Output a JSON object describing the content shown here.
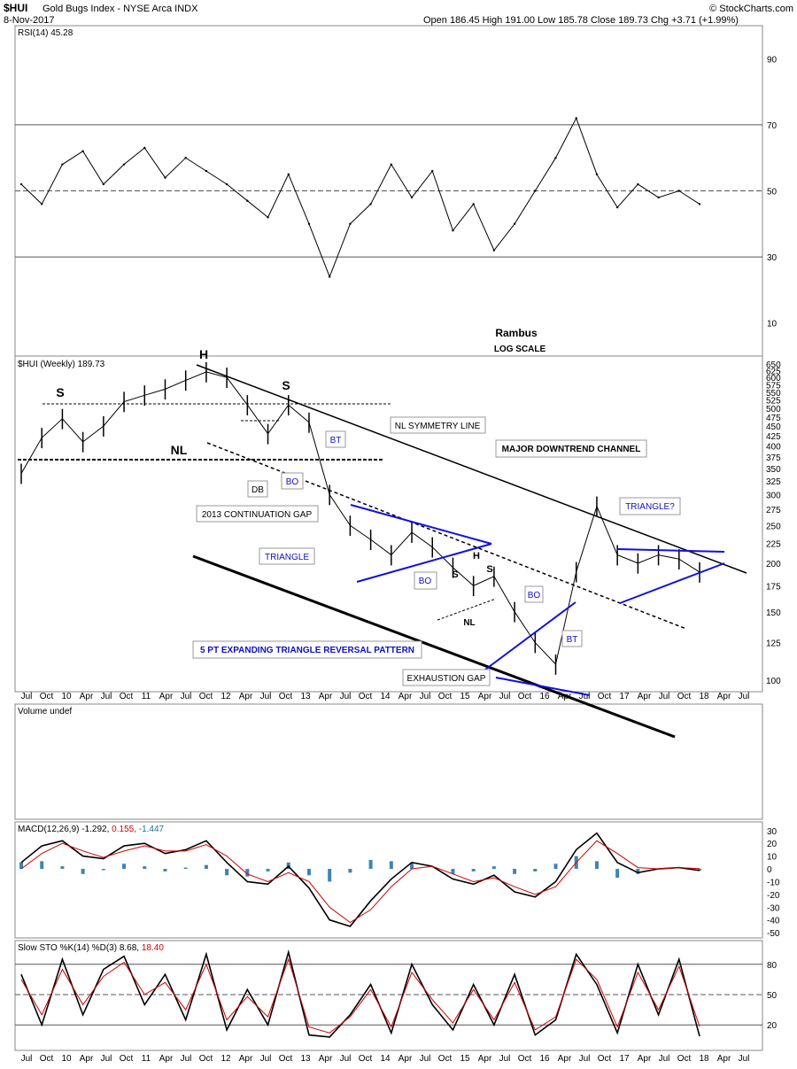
{
  "header": {
    "symbol": "$HUI",
    "name": "Gold Bugs Index - NYSE Arca INDX",
    "date": "8-Nov-2017",
    "ohlc": "Open 186.45  High 191.00  Low 185.78  Close 189.73  Chg +3.71 (+1.99%)",
    "watermark": "© StockCharts.com"
  },
  "panels": {
    "rsi_label": "RSI(14) 45.28",
    "price_label": "$HUI (Weekly) 189.73",
    "volume_label": "Volume undef",
    "macd_label_main": "MACD(12,26,9) -1.292,",
    "macd_label_signal": "0.155,",
    "macd_label_hist": "-1.447",
    "sto_label_main": "Slow STO %K(14) %D(3) 8.68,",
    "sto_label_signal": "18.40",
    "author": "Rambus",
    "scale_note": "LOG SCALE"
  },
  "annotations": {
    "h_left": "H",
    "s_left": "S",
    "s_right": "S",
    "nl": "NL",
    "db": "DB",
    "bo1": "BO",
    "bt1": "BT",
    "nl_symmetry": "NL SYMMETRY LINE",
    "major_channel": "MAJOR DOWNTREND CHANNEL",
    "continuation_gap": "2013 CONTINUATION  GAP",
    "triangle": "TRIANGLE",
    "bo2": "BO",
    "h_small": "H",
    "s_small_left": "S",
    "s_small_right": "S",
    "nl_small": "NL",
    "bo3": "BO",
    "bt2": "BT",
    "triangle_q": "TRIANGLE?",
    "expanding": "5 PT EXPANDING TRIANGLE REVERSAL PATTERN",
    "exhaustion": "EXHAUSTION GAP"
  },
  "time_axis": {
    "labels": [
      "Jul",
      "Oct",
      "10",
      "Apr",
      "Jul",
      "Oct",
      "11",
      "Apr",
      "Jul",
      "Oct",
      "12",
      "Apr",
      "Jul",
      "Oct",
      "13",
      "Apr",
      "Jul",
      "Oct",
      "14",
      "Apr",
      "Jul",
      "Oct",
      "15",
      "Apr",
      "Jul",
      "Oct",
      "16",
      "Apr",
      "Jul",
      "Oct",
      "17",
      "Apr",
      "Jul",
      "Oct",
      "18",
      "Apr",
      "Jul"
    ]
  },
  "chart_data": [
    {
      "type": "line",
      "name": "RSI(14)",
      "yticks": [
        10,
        30,
        50,
        70,
        90
      ],
      "ylim": [
        0,
        100
      ],
      "reference_lines": [
        30,
        50,
        70
      ],
      "x_labels": [
        "Jul 09",
        "Oct 09",
        "10",
        "Apr 10",
        "Jul 10",
        "Oct 10",
        "11",
        "Apr 11",
        "Jul 11",
        "Oct 11",
        "12",
        "Apr 12",
        "Jul 12",
        "Oct 12",
        "13",
        "Apr 13",
        "Jul 13",
        "Oct 13",
        "14",
        "Apr 14",
        "Jul 14",
        "Oct 14",
        "15",
        "Apr 15",
        "Jul 15",
        "Oct 15",
        "16",
        "Apr 16",
        "Jul 16",
        "Oct 16",
        "17",
        "Apr 17",
        "Jul 17",
        "Oct 17"
      ],
      "values": [
        52,
        46,
        58,
        62,
        52,
        58,
        63,
        54,
        60,
        56,
        52,
        47,
        42,
        55,
        40,
        24,
        40,
        46,
        58,
        48,
        56,
        38,
        46,
        32,
        40,
        50,
        60,
        72,
        55,
        45,
        52,
        48,
        50,
        46
      ],
      "last": 45.28
    },
    {
      "type": "line",
      "name": "$HUI (Weekly)",
      "yscale": "log",
      "yticks": [
        100,
        125,
        150,
        175,
        200,
        225,
        250,
        275,
        300,
        325,
        350,
        375,
        400,
        425,
        450,
        475,
        500,
        525,
        550,
        575,
        600,
        625,
        650
      ],
      "ylim": [
        95,
        660
      ],
      "x_labels": [
        "Jul 09",
        "Oct 09",
        "10",
        "Apr 10",
        "Jul 10",
        "Oct 10",
        "11",
        "Apr 11",
        "Jul 11",
        "Oct 11",
        "12",
        "Apr 12",
        "Jul 12",
        "Oct 12",
        "13",
        "Apr 13",
        "Jul 13",
        "Oct 13",
        "14",
        "Apr 14",
        "Jul 14",
        "Oct 14",
        "15",
        "Apr 15",
        "Jul 15",
        "Oct 15",
        "16",
        "Apr 16",
        "Jul 16",
        "Oct 16",
        "17",
        "Apr 17",
        "Jul 17",
        "Oct 17"
      ],
      "values": [
        340,
        420,
        470,
        410,
        450,
        520,
        540,
        560,
        590,
        620,
        600,
        510,
        430,
        510,
        460,
        300,
        250,
        230,
        210,
        240,
        220,
        195,
        175,
        185,
        150,
        125,
        110,
        190,
        280,
        210,
        200,
        210,
        205,
        189.73
      ],
      "last": 189.73
    },
    {
      "type": "line",
      "name": "MACD(12,26,9)",
      "yticks": [
        -50,
        -40,
        -30,
        -20,
        -10,
        0,
        10,
        20,
        30
      ],
      "ylim": [
        -52,
        34
      ],
      "x_labels": [
        "Jul 09",
        "Oct 09",
        "10",
        "Apr 10",
        "Jul 10",
        "Oct 10",
        "11",
        "Apr 11",
        "Jul 11",
        "Oct 11",
        "12",
        "Apr 12",
        "Jul 12",
        "Oct 12",
        "13",
        "Apr 13",
        "Jul 13",
        "Oct 13",
        "14",
        "Apr 14",
        "Jul 14",
        "Oct 14",
        "15",
        "Apr 15",
        "Jul 15",
        "Oct 15",
        "16",
        "Apr 16",
        "Jul 16",
        "Oct 16",
        "17",
        "Apr 17",
        "Jul 17",
        "Oct 17"
      ],
      "series": [
        {
          "name": "MACD",
          "values": [
            5,
            18,
            22,
            10,
            8,
            18,
            20,
            12,
            15,
            22,
            5,
            -10,
            -12,
            2,
            -15,
            -40,
            -45,
            -25,
            -8,
            5,
            2,
            -8,
            -12,
            -5,
            -18,
            -22,
            -10,
            15,
            28,
            5,
            -3,
            0,
            1,
            -1.292
          ]
        },
        {
          "name": "Signal",
          "values": [
            0,
            12,
            20,
            14,
            9,
            14,
            18,
            14,
            14,
            19,
            10,
            -4,
            -10,
            -3,
            -10,
            -30,
            -42,
            -32,
            -14,
            0,
            2,
            -4,
            -10,
            -7,
            -14,
            -20,
            -14,
            5,
            22,
            12,
            1,
            0,
            1,
            0.155
          ]
        }
      ],
      "last_hist": -1.447
    },
    {
      "type": "line",
      "name": "Slow STO %K(14) %D(3)",
      "yticks": [
        20,
        50,
        80
      ],
      "ylim": [
        0,
        100
      ],
      "reference_lines": [
        20,
        50,
        80
      ],
      "x_labels": [
        "Jul 09",
        "Oct 09",
        "10",
        "Apr 10",
        "Jul 10",
        "Oct 10",
        "11",
        "Apr 11",
        "Jul 11",
        "Oct 11",
        "12",
        "Apr 12",
        "Jul 12",
        "Oct 12",
        "13",
        "Apr 13",
        "Jul 13",
        "Oct 13",
        "14",
        "Apr 14",
        "Jul 14",
        "Oct 14",
        "15",
        "Apr 15",
        "Jul 15",
        "Oct 15",
        "16",
        "Apr 16",
        "Jul 16",
        "Oct 16",
        "17",
        "Apr 17",
        "Jul 17",
        "Oct 17"
      ],
      "series": [
        {
          "name": "%K",
          "values": [
            70,
            20,
            85,
            30,
            75,
            88,
            40,
            70,
            25,
            90,
            15,
            55,
            20,
            92,
            10,
            8,
            30,
            60,
            12,
            80,
            40,
            15,
            60,
            20,
            70,
            10,
            25,
            90,
            60,
            12,
            80,
            30,
            85,
            8.68
          ]
        },
        {
          "name": "%D",
          "values": [
            65,
            30,
            75,
            40,
            68,
            82,
            50,
            62,
            35,
            80,
            25,
            48,
            28,
            85,
            18,
            12,
            28,
            55,
            18,
            72,
            45,
            22,
            55,
            25,
            62,
            15,
            28,
            85,
            65,
            18,
            72,
            35,
            78,
            18.4
          ]
        }
      ]
    }
  ]
}
